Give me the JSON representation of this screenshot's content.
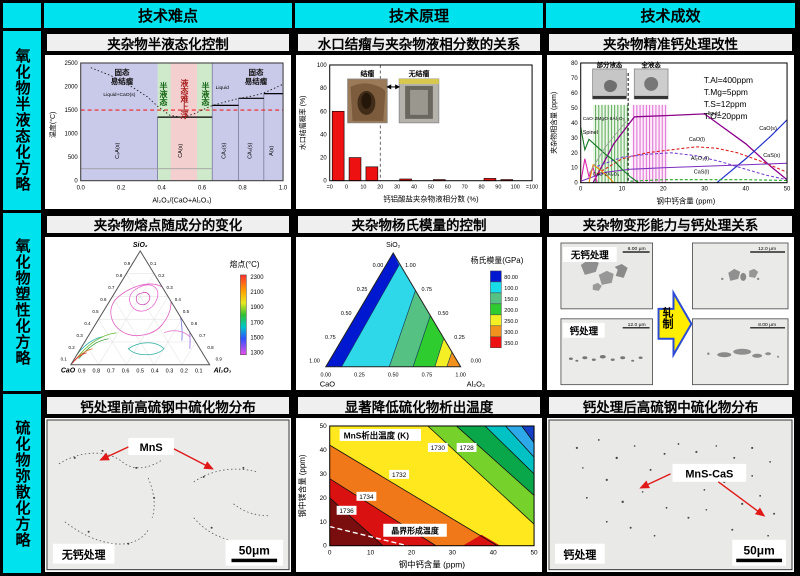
{
  "colors": {
    "cyan_header": "#00e2ee",
    "panel_title_bg": "#efefef",
    "bar_red": "#ee1111",
    "arrow_red": "#e11818",
    "steel_temp_dash_red": "#ee2222",
    "lavender_region": "#c9c9ea",
    "green_region": "#cfe9cb",
    "pink_region": "#f4cfd0",
    "rolling_arrow_yellow": "#ffee00",
    "rolling_arrow_border": "#2b4bd7"
  },
  "header": {
    "columns": [
      "技术难点",
      "技术原理",
      "技术成效"
    ],
    "rows": [
      "氧化物半液态化方略",
      "氧化物塑性化方略",
      "硫化物弥散化方略"
    ]
  },
  "panels": {
    "p11": {
      "title": "夹杂物半液态化控制",
      "xlabel": "Al₂O₃/(CaO+Al₂O₃)",
      "ylabel": "温度(°C)",
      "zone_solid_left": "固态\n易结瘤",
      "zone_semi_1": "半液态",
      "zone_liquid": "液态难上浮",
      "zone_semi_2": "半液态",
      "zone_solid_right": "固态\n易结瘤",
      "liquid_cao": "Liquid+CaO(s)",
      "liquid": "Liquid"
    },
    "p12": {
      "title": "水口结瘤与夹杂物液相分数的关系",
      "xlabel": "钙铝酸盐夹杂物液相分数 (%)",
      "ylabel": "水口结瘤概率 (%)",
      "label_clog": "结瘤",
      "label_noclog": "无结瘤"
    },
    "p13": {
      "title": "夹杂物精准钙处理改性",
      "xlabel": "钢中钙含量 (ppm)",
      "ylabel": "夹杂物相含量 (ppm)",
      "region_partial": "部分液态",
      "region_full": "全液态",
      "params": [
        "T.Al=400ppm",
        "T.Mg=5ppm",
        "T.S=12ppm",
        "T.O=20ppm"
      ]
    },
    "p21": {
      "title": "夹杂物熔点随成分的变化",
      "legend_title": "熔点(°C)",
      "corner_top": "SiO₂",
      "corner_left": "CaO",
      "corner_right": "Al₂O₃"
    },
    "p22": {
      "title": "夹杂物杨氏模量的控制",
      "legend_title": "杨氏模量(GPa)",
      "corner_top": "SiO₂",
      "corner_left": "CaO",
      "corner_right": "Al₂O₃"
    },
    "p23": {
      "title": "夹杂物变形能力与钙处理关系",
      "label_no_ca": "无钙处理",
      "label_ca": "钙处理",
      "arrow_label": "轧制",
      "scale_tl": "8.00 μm",
      "scale_tr": "12.0 μm",
      "scale_bl": "12.0 μm",
      "scale_br": "8.00 μm"
    },
    "p31": {
      "title": "钙处理前高硫钢中硫化物分布",
      "annotation": "MnS",
      "label": "无钙处理",
      "scale": "50μm"
    },
    "p32": {
      "title": "显著降低硫化物析出温度",
      "inner_title": "MnS析出温度 (K)",
      "xlabel": "钢中钙含量 (ppm)",
      "ylabel": "钢中镁含量 (ppm)",
      "dashed_label": "晶界形成温度"
    },
    "p33": {
      "title": "钙处理后高硫钢中硫化物分布",
      "annotation": "MnS-CaS",
      "label": "钙处理",
      "scale": "50μm"
    }
  },
  "chart_data": [
    {
      "id": "oxide-semi-liquid-phase-diagram",
      "type": "area",
      "title": "夹杂物半液态化控制",
      "xlabel": "Al₂O₃/(CaO+Al₂O₃)",
      "ylabel": "温度(°C)",
      "xlim": [
        0,
        1
      ],
      "ylim": [
        0,
        2500
      ],
      "xticks": [
        "0.0",
        "0.2",
        "0.4",
        "0.6",
        "0.8",
        "1.0"
      ],
      "yticks": [
        "0",
        "500",
        "1000",
        "1500",
        "2000",
        "2500"
      ],
      "steel_temp_line": 1500,
      "zones": [
        {
          "range": [
            0,
            0.38
          ],
          "state": "固态易结瘤"
        },
        {
          "range": [
            0.38,
            0.445
          ],
          "state": "半液态"
        },
        {
          "range": [
            0.445,
            0.575
          ],
          "state": "液态难上浮"
        },
        {
          "range": [
            0.575,
            0.65
          ],
          "state": "半液态"
        },
        {
          "range": [
            0.65,
            1.0
          ],
          "state": "固态易结瘤"
        }
      ],
      "phase_labels": [
        "C₃A(s)",
        "CA(s)",
        "CA₂(s)",
        "CA₆(s)",
        "A(s)"
      ],
      "liquidus": [
        {
          "color": "#222222",
          "dash": "1.5,2.2",
          "w": 0.9,
          "points": [
            [
              0.05,
              2400
            ],
            [
              0.15,
              2230
            ],
            [
              0.25,
              2000
            ],
            [
              0.33,
              1780
            ],
            [
              0.38,
              1580
            ],
            [
              0.44,
              1390
            ],
            [
              0.5,
              1345
            ],
            [
              0.56,
              1420
            ],
            [
              0.62,
              1540
            ],
            [
              0.65,
              1595
            ],
            [
              0.72,
              1680
            ],
            [
              0.78,
              1745
            ],
            [
              0.85,
              1800
            ],
            [
              0.9,
              1855
            ],
            [
              0.95,
              1950
            ],
            [
              1.0,
              2050
            ]
          ]
        }
      ]
    },
    {
      "id": "nozzle-clogging-vs-liquid-fraction",
      "type": "bar",
      "xlabel": "钙铝酸盐夹杂物液相分数 (%)",
      "ylabel": "水口结瘤概率 (%)",
      "ylim": [
        0,
        100
      ],
      "yticks": [
        "0",
        "20",
        "40",
        "60",
        "80",
        "100"
      ],
      "categories": [
        "=0",
        "0",
        "10",
        "20",
        "30",
        "40",
        "50",
        "60",
        "70",
        "80",
        "90",
        "100",
        "=100"
      ],
      "bars": [
        {
          "slot": 0,
          "value": 60
        },
        {
          "slot": 1,
          "value": 20
        },
        {
          "slot": 2,
          "value": 12
        },
        {
          "slot": 4,
          "value": 1.5
        },
        {
          "slot": 6,
          "value": 1
        },
        {
          "slot": 9,
          "value": 2
        },
        {
          "slot": 10,
          "value": 1
        }
      ]
    },
    {
      "id": "precise-ca-treatment-phase-content",
      "type": "line",
      "xlabel": "钢中钙含量 (ppm)",
      "ylabel": "夹杂物相含量 (ppm)",
      "xlim": [
        0,
        50
      ],
      "ylim": [
        0,
        80
      ],
      "xticks": [
        "0",
        "10",
        "20",
        "30",
        "40",
        "50"
      ],
      "yticks": [
        "0",
        "10",
        "20",
        "30",
        "40",
        "50",
        "60",
        "70",
        "80"
      ],
      "regions": [
        {
          "label": "部分液态",
          "x": [
            3,
            11.5
          ]
        },
        {
          "label": "全液态",
          "x": [
            12.3,
            21
          ]
        }
      ],
      "series": [
        {
          "name": "liquid",
          "color": "#8b008b",
          "w": 1.3,
          "points": [
            [
              3,
              0
            ],
            [
              8,
              26
            ],
            [
              13,
              44
            ],
            [
              22,
              45
            ],
            [
              30,
              46
            ],
            [
              34,
              38
            ],
            [
              40,
              26
            ],
            [
              46,
              11
            ],
            [
              50,
              2
            ]
          ]
        },
        {
          "name": "CaO(s)",
          "color": "#2233cc",
          "w": 1.2,
          "points": [
            [
              33,
              0
            ],
            [
              40,
              16
            ],
            [
              46,
              31
            ],
            [
              50,
              42
            ]
          ]
        },
        {
          "name": "CaO(l)",
          "color": "#dd2222",
          "dash": "3,2",
          "points": [
            [
              4,
              6
            ],
            [
              10,
              16
            ],
            [
              16,
              20
            ],
            [
              22,
              22
            ],
            [
              28,
              24
            ],
            [
              33,
              23
            ],
            [
              38,
              20
            ],
            [
              44,
              14
            ],
            [
              50,
              7
            ]
          ]
        },
        {
          "name": "Al₂O₃(l)",
          "color": "#7744cc",
          "dash": "3,2",
          "points": [
            [
              4,
              11
            ],
            [
              10,
              17
            ],
            [
              16,
              19
            ],
            [
              22,
              20
            ],
            [
              28,
              18
            ],
            [
              34,
              14
            ],
            [
              40,
              9
            ],
            [
              45,
              5
            ],
            [
              50,
              2
            ]
          ]
        },
        {
          "name": "CaS(s)",
          "color": "#7b2fbe",
          "points": [
            [
              0,
              1
            ],
            [
              6,
              7
            ],
            [
              12,
              9
            ],
            [
              20,
              10
            ],
            [
              30,
              11
            ],
            [
              40,
              12
            ],
            [
              50,
              13
            ]
          ]
        },
        {
          "name": "CaS(l)",
          "color": "#22aa22",
          "dash": "3,2",
          "points": [
            [
              12,
              1
            ],
            [
              20,
              2
            ],
            [
              30,
              2
            ],
            [
              40,
              2
            ],
            [
              50,
              1.5
            ]
          ]
        },
        {
          "name": "Spinel",
          "color": "#117722",
          "points": [
            [
              0,
              37
            ],
            [
              1,
              22
            ],
            [
              2,
              29
            ],
            [
              4,
              24
            ],
            [
              6,
              19
            ],
            [
              8,
              15
            ],
            [
              10,
              9
            ],
            [
              12,
              4
            ],
            [
              14,
              0
            ]
          ]
        },
        {
          "name": "CaO·2MgO·8Al₂O₃",
          "color": "#dd22aa",
          "points": [
            [
              0,
              0
            ],
            [
              1,
              16
            ],
            [
              2,
              4
            ],
            [
              3,
              10
            ],
            [
              4,
              0
            ]
          ]
        },
        {
          "name": "CaO·2Al₂O₃",
          "color": "#ee8800",
          "points": [
            [
              2,
              0
            ],
            [
              3,
              12
            ],
            [
              5,
              8
            ],
            [
              7,
              3
            ],
            [
              8,
              0
            ]
          ]
        },
        {
          "name": "",
          "color": "#999999",
          "w": 0.8,
          "points": [
            [
              2,
              6
            ],
            [
              6,
              24
            ],
            [
              11,
              41
            ]
          ]
        }
      ]
    },
    {
      "id": "melting-point-ternary",
      "type": "ternary-contour",
      "corners": [
        "SiO₂",
        "CaO",
        "Al₂O₃"
      ],
      "legend_title": "熔点(°C)",
      "legend_values": [
        "2300",
        "2100",
        "1900",
        "1700",
        "1500",
        "1300"
      ],
      "bottom_ticks": [
        "0.9",
        "0.8",
        "0.7",
        "0.6",
        "0.5",
        "0.4",
        "0.3",
        "0.2",
        "0.1"
      ],
      "left_ticks": [
        "0.1",
        "0.2",
        "0.3",
        "0.4",
        "0.5",
        "0.6",
        "0.7",
        "0.8",
        "0.9"
      ],
      "right_ticks": [
        "0.1",
        "0.2",
        "0.3",
        "0.4",
        "0.5",
        "0.6",
        "0.7",
        "0.8",
        "0.9"
      ]
    },
    {
      "id": "youngs-modulus-ternary",
      "type": "ternary-filled",
      "corners": [
        "SiO₂",
        "CaO",
        "Al₂O₃"
      ],
      "legend_title": "杨氏模量(GPa)",
      "legend_values": [
        "80.00",
        "100.0",
        "150.0",
        "200.0",
        "250.0",
        "300.0",
        "350.0"
      ],
      "legend_colors": [
        "#0018cf",
        "#18dce8",
        "#55c183",
        "#2ecc2e",
        "#f4ef25",
        "#f2921e",
        "#ee1111"
      ],
      "left_ticks": [
        "0.00",
        "0.25",
        "0.50",
        "0.75",
        "1.00"
      ],
      "right_ticks": [
        "1.00",
        "0.75",
        "0.50",
        "0.25",
        "0.00"
      ],
      "bottom_ticks": [
        "0.00",
        "0.25",
        "0.50",
        "0.75",
        "1.00"
      ]
    },
    {
      "id": "mns-precipitation-temperature-contour",
      "type": "contour-filled",
      "inner_title": "MnS析出温度 (K)",
      "xlabel": "钢中钙含量 (ppm)",
      "ylabel": "钢中镁含量 (ppm)",
      "xlim": [
        0,
        50
      ],
      "ylim": [
        0,
        50
      ],
      "xticks": [
        "0",
        "10",
        "20",
        "30",
        "40",
        "50"
      ],
      "yticks": [
        "0",
        "10",
        "20",
        "30",
        "40",
        "50"
      ],
      "levels": [
        "1728",
        "1730",
        "1732",
        "1734",
        "1736"
      ],
      "band_colors": [
        "#7a0d0d",
        "#d91111",
        "#f07818",
        "#ffe91e",
        "#76d22b",
        "#0aa64a",
        "#00c2c4",
        "#2da8e8",
        "#1440c8"
      ],
      "dashed_label": "晶界形成温度"
    }
  ]
}
